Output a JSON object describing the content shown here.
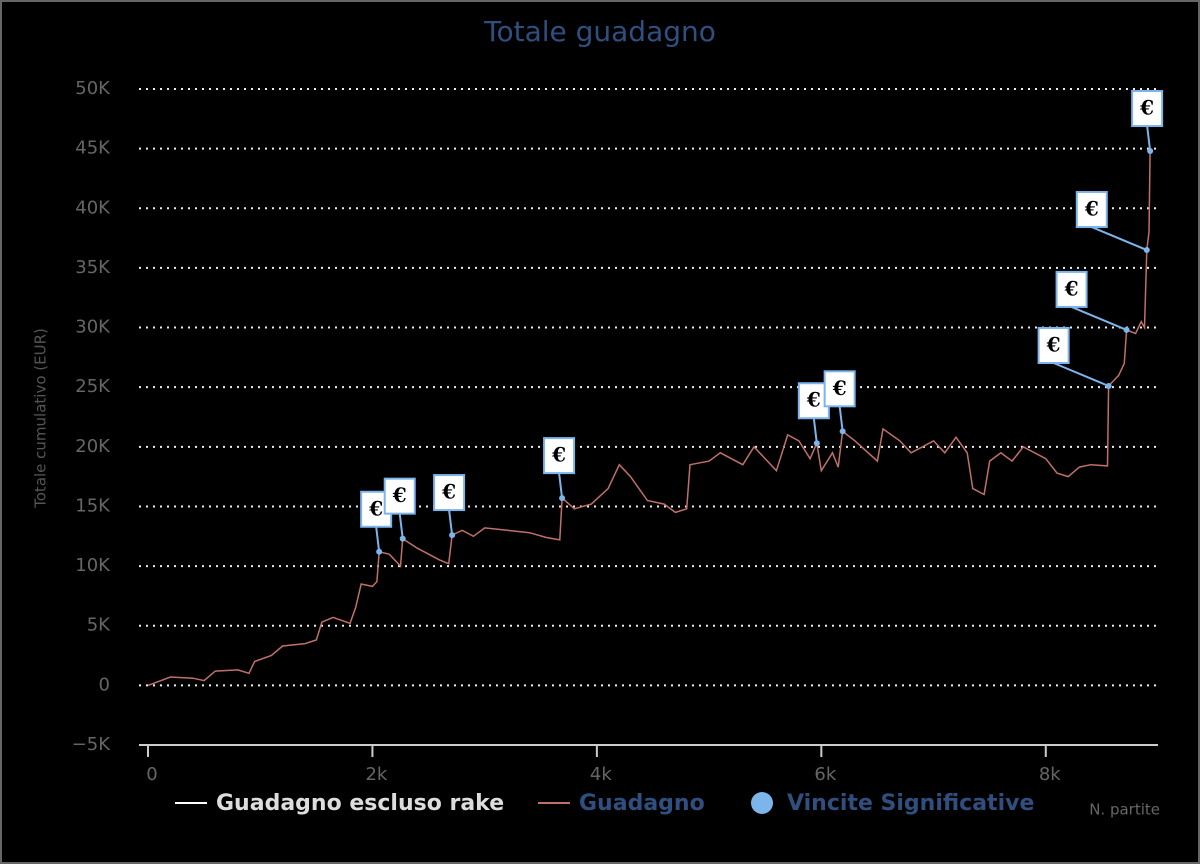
{
  "chart_data": {
    "type": "line",
    "title": "Totale guadagno",
    "ylabel": "Totale cumulativo (EUR)",
    "xlabel": "N. partite",
    "xlim": [
      -80,
      9000
    ],
    "ylim": [
      -5000,
      50000
    ],
    "xticks": [
      0,
      {
        "value": 2000,
        "label": "2k"
      },
      {
        "value": 4000,
        "label": "4k"
      },
      {
        "value": 6000,
        "label": "6k"
      },
      {
        "value": 8000,
        "label": "8k"
      }
    ],
    "yticks": [
      {
        "value": -5000,
        "label": "−5K"
      },
      0,
      {
        "value": 5000,
        "label": "5K"
      },
      {
        "value": 10000,
        "label": "10K"
      },
      {
        "value": 15000,
        "label": "15K"
      },
      {
        "value": 20000,
        "label": "20K"
      },
      {
        "value": 25000,
        "label": "25K"
      },
      {
        "value": 30000,
        "label": "30K"
      },
      {
        "value": 35000,
        "label": "35K"
      },
      {
        "value": 40000,
        "label": "40K"
      },
      {
        "value": 45000,
        "label": "45K"
      },
      {
        "value": 50000,
        "label": "50K"
      }
    ],
    "grid": true,
    "series": [
      {
        "name": "Guadagno escluso rake",
        "color": "#ffffff"
      },
      {
        "name": "Guadagno",
        "color": "#c0706a",
        "x": [
          0,
          200,
          400,
          500,
          600,
          800,
          900,
          950,
          1100,
          1200,
          1400,
          1500,
          1550,
          1650,
          1800,
          1850,
          1900,
          2000,
          2040,
          2060,
          2150,
          2250,
          2270,
          2400,
          2600,
          2680,
          2710,
          2800,
          2900,
          3000,
          3200,
          3400,
          3550,
          3670,
          3690,
          3800,
          3950,
          4100,
          4200,
          4300,
          4450,
          4600,
          4700,
          4800,
          4830,
          5000,
          5100,
          5300,
          5400,
          5600,
          5700,
          5800,
          5900,
          5960,
          6000,
          6100,
          6150,
          6190,
          6300,
          6500,
          6550,
          6700,
          6800,
          7000,
          7100,
          7200,
          7300,
          7350,
          7450,
          7500,
          7600,
          7700,
          7800,
          8000,
          8100,
          8200,
          8300,
          8400,
          8550,
          8560,
          8650,
          8700,
          8720,
          8800,
          8850,
          8880,
          8900,
          8920,
          8930
        ],
        "values": [
          0,
          700,
          600,
          400,
          1200,
          1300,
          1000,
          2000,
          2500,
          3300,
          3500,
          3800,
          5300,
          5700,
          5200,
          6500,
          8500,
          8300,
          8700,
          11200,
          11000,
          10000,
          12300,
          11500,
          10500,
          10200,
          12600,
          13000,
          12500,
          13200,
          13000,
          12800,
          12400,
          12200,
          15700,
          14800,
          15200,
          16500,
          18500,
          17500,
          15500,
          15200,
          14500,
          14800,
          18500,
          18800,
          19500,
          18500,
          20000,
          18000,
          21000,
          20500,
          19000,
          20300,
          18000,
          19500,
          18300,
          21300,
          20500,
          18800,
          21500,
          20500,
          19500,
          20500,
          19500,
          20800,
          19500,
          16500,
          16000,
          18800,
          19500,
          18800,
          20000,
          19000,
          17800,
          17500,
          18300,
          18500,
          18400,
          25100,
          26000,
          27000,
          29800,
          29500,
          30500,
          30000,
          36500,
          38000,
          44800
        ]
      },
      {
        "name": "Vincite Significative",
        "color": "#7cb5ec",
        "flag_label": "€",
        "x": [
          2060,
          2270,
          2710,
          3690,
          5960,
          6190,
          8560,
          8720,
          8900,
          8930
        ],
        "values": [
          11200,
          12300,
          12600,
          15700,
          20300,
          21300,
          25100,
          29800,
          36500,
          44800
        ]
      }
    ]
  }
}
